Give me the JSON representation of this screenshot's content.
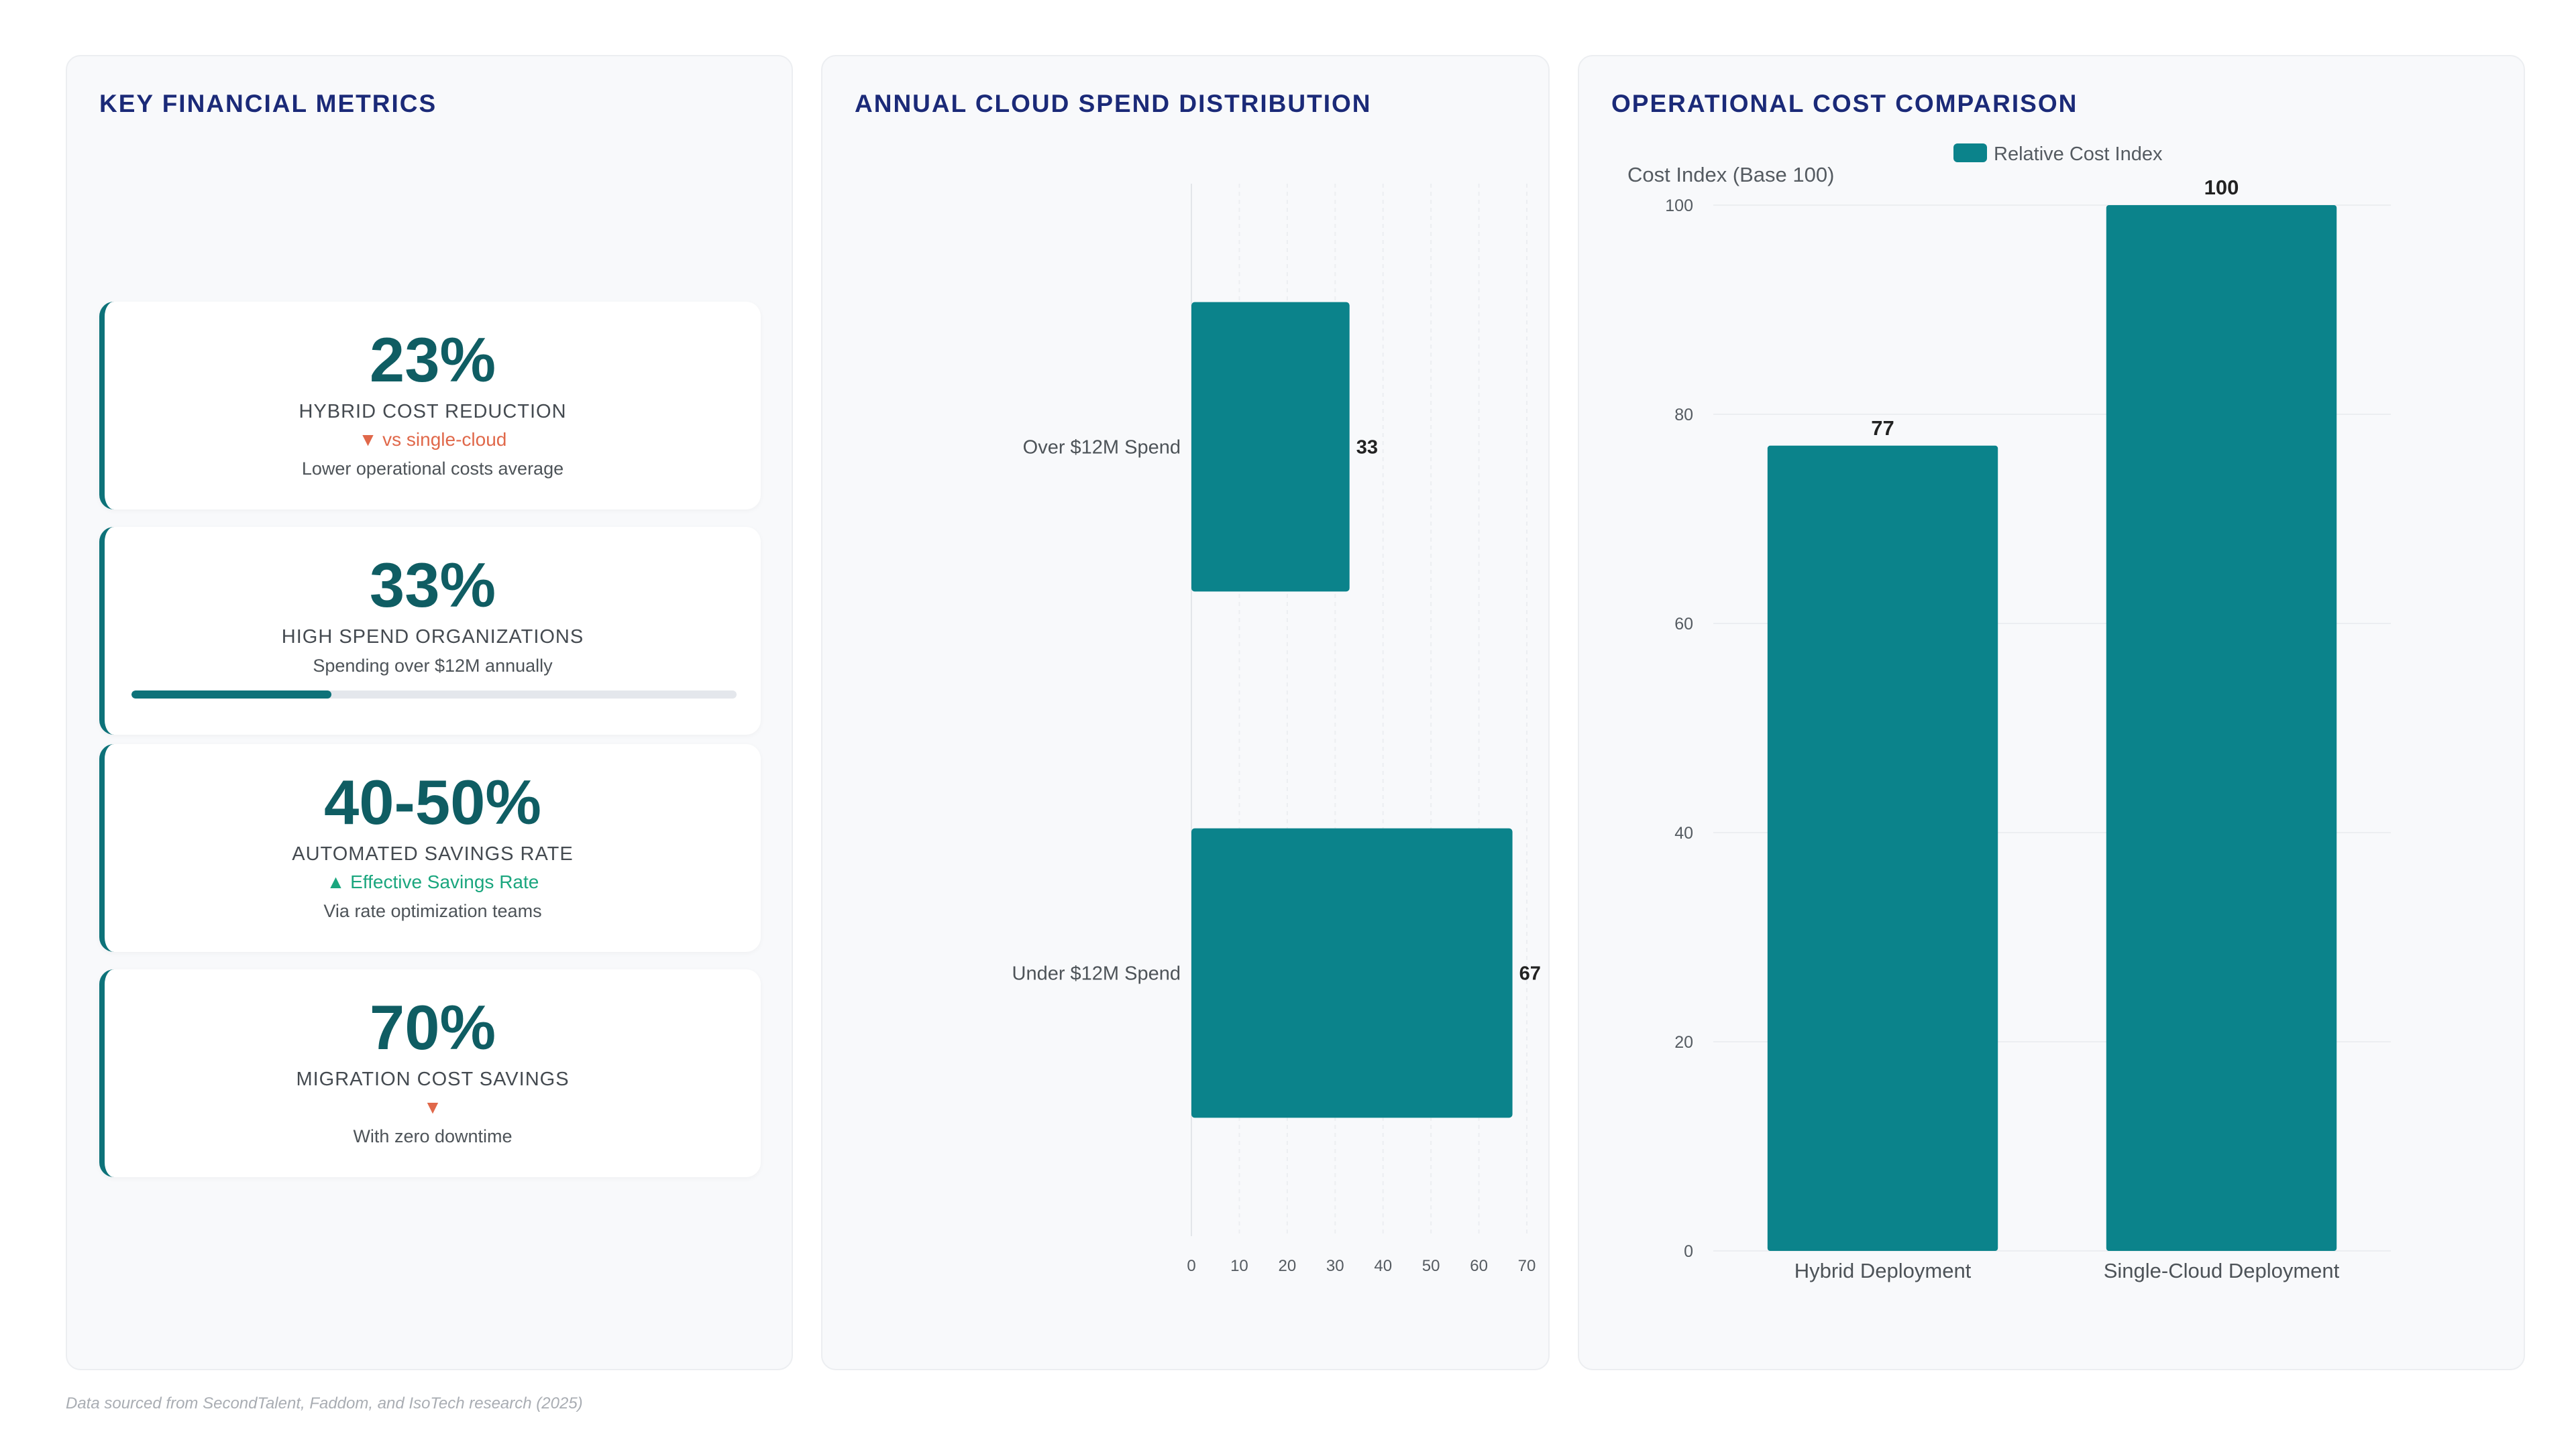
{
  "footer": "Data sourced from SecondTalent, Faddom, and IsoTech research (2025)",
  "metrics_panel": {
    "title": "KEY FINANCIAL METRICS",
    "cards": [
      {
        "value": "23%",
        "label": "HYBRID COST REDUCTION",
        "trend": "▼ vs single-cloud",
        "trend_dir": "down",
        "note": "Lower operational costs average"
      },
      {
        "value": "33%",
        "label": "HIGH SPEND ORGANIZATIONS",
        "note": "Spending over $12M annually",
        "progress": 0.33
      },
      {
        "value": "40-50%",
        "label": "AUTOMATED SAVINGS RATE",
        "trend": "▲ Effective Savings Rate",
        "trend_dir": "up",
        "note": "Via rate optimization teams"
      },
      {
        "value": "70%",
        "label": "MIGRATION COST SAVINGS",
        "trend": "▼",
        "trend_dir": "down",
        "note": "With zero downtime"
      }
    ]
  },
  "colors": {
    "accent": "#0b838b",
    "title": "#1b2a78",
    "metric_value": "#0f5d63",
    "trend_down": "#e0684a",
    "trend_up": "#1aa67e"
  },
  "chart_data": [
    {
      "type": "bar",
      "orientation": "horizontal",
      "title": "ANNUAL CLOUD SPEND DISTRIBUTION",
      "categories": [
        "Over $12M Spend",
        "Under $12M Spend"
      ],
      "values": [
        33,
        67
      ],
      "data_labels": [
        "33",
        "67"
      ],
      "xlim": [
        0,
        70
      ],
      "xticks": [
        0,
        10,
        20,
        30,
        40,
        50,
        60,
        70
      ],
      "grid": "vertical dashed",
      "legend": "none"
    },
    {
      "type": "bar",
      "orientation": "vertical",
      "title": "OPERATIONAL COST COMPARISON",
      "categories": [
        "Hybrid Deployment",
        "Single-Cloud Deployment"
      ],
      "series": [
        {
          "name": "Relative Cost Index",
          "values": [
            77,
            100
          ]
        }
      ],
      "data_labels": [
        "77",
        "100"
      ],
      "ylabel": "Cost Index (Base 100)",
      "ylim": [
        0,
        100
      ],
      "yticks": [
        0,
        20,
        40,
        60,
        80,
        100
      ],
      "grid": "horizontal",
      "legend": "top-center"
    }
  ]
}
